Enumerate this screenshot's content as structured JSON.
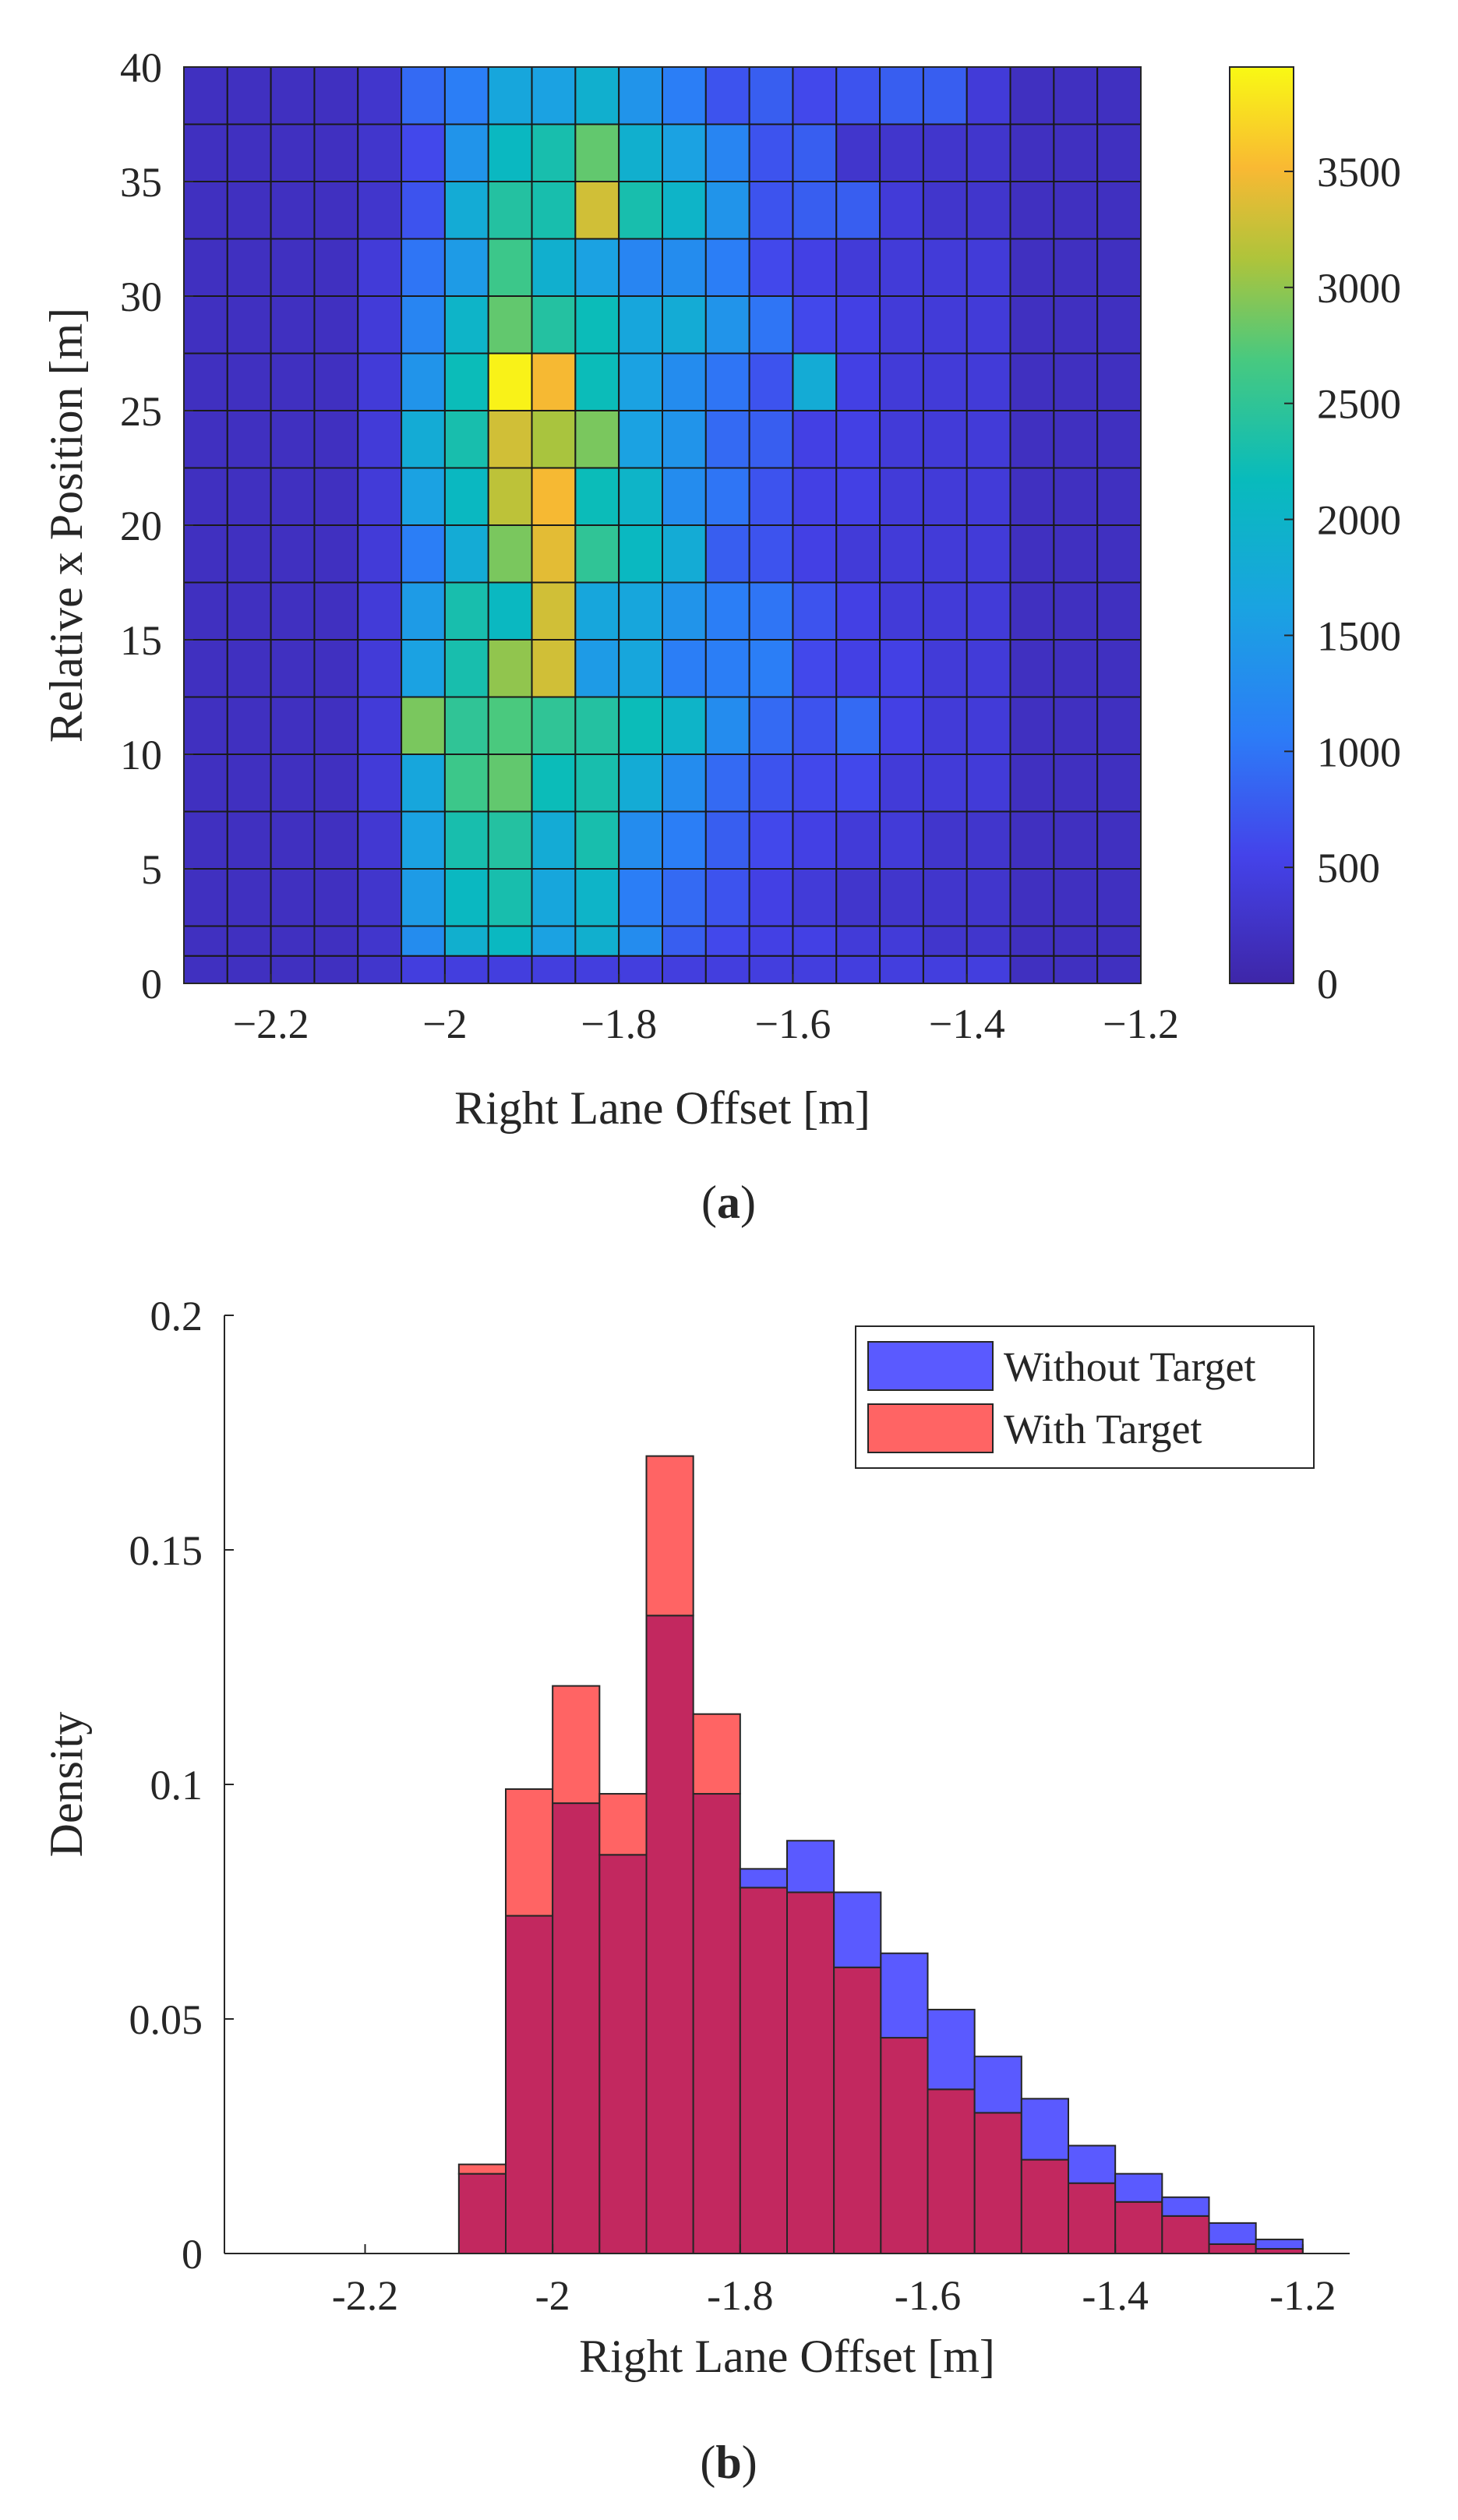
{
  "chart_data": [
    {
      "type": "heatmap",
      "panel_label_open": "(",
      "panel_label_letter": "a",
      "panel_label_close": ")",
      "xlabel": "Right Lane Offset [m]",
      "ylabel": "Relative x Position [m]",
      "xlim": [
        -2.3,
        -1.2
      ],
      "ylim": [
        0,
        40
      ],
      "xticks": [
        "-2.2",
        "-2",
        "-1.8",
        "-1.6",
        "-1.4",
        "-1.2"
      ],
      "yticks": [
        "0",
        "5",
        "10",
        "15",
        "20",
        "25",
        "30",
        "35",
        "40"
      ],
      "colorbar_ticks": [
        "0",
        "500",
        "1000",
        "1500",
        "2000",
        "2500",
        "3000",
        "3500"
      ],
      "color_range": [
        0,
        3950
      ],
      "colormap": "parula",
      "cols_x_centers": [
        -2.275,
        -2.225,
        -2.175,
        -2.125,
        -2.075,
        -2.025,
        -1.975,
        -1.925,
        -1.875,
        -1.825,
        -1.775,
        -1.725,
        -1.675,
        -1.625,
        -1.575,
        -1.525,
        -1.475,
        -1.425,
        -1.375,
        -1.325,
        -1.275,
        -1.225
      ],
      "row_y_ranges_bottom_to_top": [
        [
          0,
          1.2
        ],
        [
          1.2,
          2.5
        ],
        [
          2.5,
          5
        ],
        [
          5,
          7.5
        ],
        [
          7.5,
          10
        ],
        [
          10,
          12.5
        ],
        [
          12.5,
          15
        ],
        [
          15,
          17.5
        ],
        [
          17.5,
          20
        ],
        [
          20,
          22.5
        ],
        [
          22.5,
          25
        ],
        [
          25,
          27.5
        ],
        [
          27.5,
          30
        ],
        [
          30,
          32.5
        ],
        [
          32.5,
          35
        ],
        [
          35,
          37.5
        ],
        [
          37.5,
          40
        ]
      ],
      "values_bottom_to_top": [
        [
          200,
          200,
          200,
          200,
          300,
          450,
          450,
          450,
          450,
          450,
          450,
          450,
          450,
          450,
          450,
          450,
          450,
          450,
          450,
          200,
          200,
          200
        ],
        [
          200,
          200,
          200,
          200,
          300,
          1300,
          1900,
          2100,
          1600,
          1900,
          1300,
          800,
          600,
          500,
          500,
          400,
          400,
          300,
          300,
          200,
          200,
          200
        ],
        [
          200,
          200,
          200,
          200,
          300,
          1500,
          2100,
          2300,
          1700,
          2000,
          1100,
          900,
          700,
          500,
          400,
          300,
          300,
          300,
          300,
          200,
          200,
          200
        ],
        [
          200,
          200,
          200,
          200,
          350,
          1600,
          2300,
          2400,
          1800,
          2300,
          1300,
          1100,
          800,
          600,
          500,
          400,
          400,
          300,
          300,
          200,
          200,
          200
        ],
        [
          200,
          200,
          200,
          200,
          400,
          1700,
          2600,
          2800,
          2200,
          2300,
          1800,
          1300,
          900,
          700,
          600,
          600,
          400,
          400,
          400,
          200,
          200,
          200
        ],
        [
          200,
          200,
          200,
          200,
          400,
          2900,
          2500,
          2700,
          2500,
          2400,
          2200,
          2000,
          1300,
          900,
          700,
          900,
          500,
          400,
          400,
          200,
          200,
          200
        ],
        [
          200,
          200,
          200,
          200,
          400,
          1600,
          2300,
          3000,
          3300,
          1500,
          1700,
          1100,
          1100,
          1100,
          600,
          500,
          500,
          400,
          400,
          200,
          200,
          200
        ],
        [
          200,
          200,
          200,
          200,
          400,
          1500,
          2300,
          2100,
          3300,
          1700,
          1700,
          1400,
          1100,
          1000,
          700,
          500,
          400,
          400,
          400,
          200,
          200,
          200
        ],
        [
          200,
          200,
          200,
          200,
          400,
          1100,
          1800,
          2900,
          3400,
          2500,
          2100,
          1800,
          800,
          700,
          500,
          400,
          400,
          400,
          400,
          200,
          200,
          200
        ],
        [
          200,
          200,
          200,
          200,
          400,
          1600,
          2100,
          3200,
          3500,
          2200,
          2000,
          1300,
          1000,
          700,
          500,
          500,
          400,
          400,
          400,
          200,
          200,
          200
        ],
        [
          200,
          200,
          200,
          200,
          400,
          1800,
          2300,
          3300,
          3100,
          2900,
          1600,
          1400,
          900,
          800,
          500,
          500,
          400,
          400,
          400,
          200,
          200,
          200
        ],
        [
          200,
          200,
          200,
          200,
          400,
          1400,
          2200,
          3900,
          3500,
          2200,
          1600,
          1300,
          1000,
          700,
          1800,
          500,
          400,
          400,
          400,
          200,
          200,
          200
        ],
        [
          200,
          200,
          200,
          200,
          400,
          1200,
          2000,
          2800,
          2400,
          2200,
          1700,
          1800,
          1400,
          1000,
          600,
          500,
          400,
          400,
          400,
          200,
          200,
          200
        ],
        [
          200,
          200,
          200,
          200,
          400,
          1000,
          1500,
          2600,
          1900,
          1600,
          1200,
          1300,
          1100,
          600,
          500,
          400,
          400,
          400,
          400,
          200,
          200,
          200
        ],
        [
          200,
          200,
          200,
          200,
          300,
          700,
          1800,
          2400,
          2300,
          3300,
          2300,
          2000,
          1400,
          700,
          800,
          800,
          400,
          300,
          300,
          200,
          200,
          200
        ],
        [
          200,
          200,
          200,
          200,
          300,
          600,
          1400,
          2100,
          2300,
          2800,
          1900,
          1600,
          1200,
          700,
          800,
          300,
          300,
          300,
          300,
          200,
          200,
          200
        ],
        [
          200,
          200,
          200,
          200,
          300,
          900,
          1100,
          1700,
          1600,
          1900,
          1400,
          1100,
          700,
          800,
          600,
          700,
          800,
          800,
          400,
          200,
          200,
          200
        ]
      ]
    },
    {
      "type": "bar",
      "panel_label_open": "(",
      "panel_label_letter": "b",
      "panel_label_close": ")",
      "xlabel": "Right Lane Offset [m]",
      "ylabel": "Density",
      "xlim": [
        -2.35,
        -1.15
      ],
      "ylim": [
        0,
        0.2
      ],
      "xticks": [
        "-2.2",
        "-2",
        "-1.8",
        "-1.6",
        "-1.4",
        "-1.2"
      ],
      "yticks": [
        "0",
        "0.05",
        "0.1",
        "0.15",
        "0.2"
      ],
      "legend_position": "top-right",
      "bin_edges": [
        -2.1,
        -2.05,
        -2.0,
        -1.95,
        -1.9,
        -1.85,
        -1.8,
        -1.75,
        -1.7,
        -1.65,
        -1.6,
        -1.55,
        -1.5,
        -1.45,
        -1.4,
        -1.35,
        -1.3,
        -1.25,
        -1.2
      ],
      "series": [
        {
          "name": "Without Target",
          "color": "#5a5aff",
          "values": [
            0.017,
            0.072,
            0.096,
            0.085,
            0.136,
            0.098,
            0.082,
            0.088,
            0.077,
            0.064,
            0.052,
            0.042,
            0.033,
            0.023,
            0.017,
            0.012,
            0.0065,
            0.003
          ]
        },
        {
          "name": "With Target",
          "color": "#ff6464",
          "values": [
            0.019,
            0.099,
            0.121,
            0.098,
            0.17,
            0.115,
            0.078,
            0.077,
            0.061,
            0.046,
            0.035,
            0.03,
            0.02,
            0.015,
            0.011,
            0.008,
            0.002,
            0.001
          ]
        }
      ]
    }
  ]
}
